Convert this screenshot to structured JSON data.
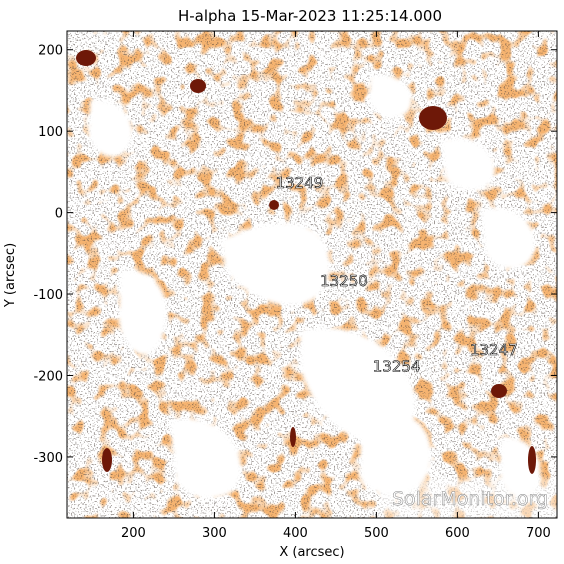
{
  "figure": {
    "title": "H-alpha 15-Mar-2023 11:25:14.000",
    "xlabel": "X (arcsec)",
    "ylabel": "Y (arcsec)",
    "watermark": "SolarMonitor.org"
  },
  "axes": {
    "x_range_arcsec": [
      118,
      723
    ],
    "y_range_arcsec": [
      -375,
      223
    ],
    "x_ticks": [
      200,
      300,
      400,
      500,
      600,
      700
    ],
    "y_ticks": [
      200,
      100,
      0,
      -100,
      -200,
      -300
    ]
  },
  "regions": [
    {
      "label": "13249",
      "x": 405,
      "y": 30
    },
    {
      "label": "13250",
      "x": 460,
      "y": -90
    },
    {
      "label": "13254",
      "x": 525,
      "y": -195
    },
    {
      "label": "13247",
      "x": 645,
      "y": -175
    }
  ],
  "colors": {
    "background": "#ffffff",
    "chromosphere_base": "#e8742a",
    "chromosphere_light": "#f5a35a",
    "dark_spot": "#6e1808",
    "noise": "#1a1a1a",
    "axis": "#000000"
  }
}
